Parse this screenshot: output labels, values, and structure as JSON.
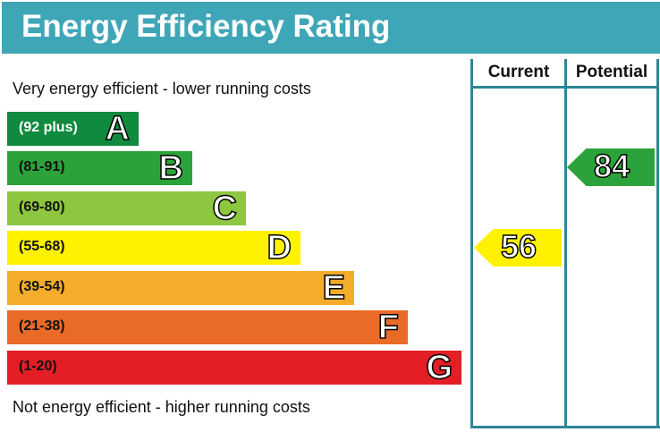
{
  "chart_data": {
    "type": "table",
    "title": "Energy Efficiency Rating",
    "columns": [
      "Current",
      "Potential"
    ],
    "top_note": "Very energy efficient - lower running costs",
    "bottom_note": "Not energy efficient - higher running costs",
    "bands": [
      {
        "letter": "A",
        "range": "(92 plus)",
        "color": "#0f8a3e",
        "text_color": "#ffffff"
      },
      {
        "letter": "B",
        "range": "(81-91)",
        "color": "#2ca33a",
        "text_color": "#111111"
      },
      {
        "letter": "C",
        "range": "(69-80)",
        "color": "#8dc63f",
        "text_color": "#111111"
      },
      {
        "letter": "D",
        "range": "(55-68)",
        "color": "#fff200",
        "text_color": "#111111"
      },
      {
        "letter": "E",
        "range": "(39-54)",
        "color": "#f4ac2a",
        "text_color": "#111111"
      },
      {
        "letter": "F",
        "range": "(21-38)",
        "color": "#ea6b27",
        "text_color": "#111111"
      },
      {
        "letter": "G",
        "range": "(1-20)",
        "color": "#e31e25",
        "text_color": "#111111"
      }
    ],
    "current": {
      "value": "56",
      "band": "D",
      "color": "#fff200"
    },
    "potential": {
      "value": "84",
      "band": "B",
      "color": "#2ca33a"
    }
  }
}
